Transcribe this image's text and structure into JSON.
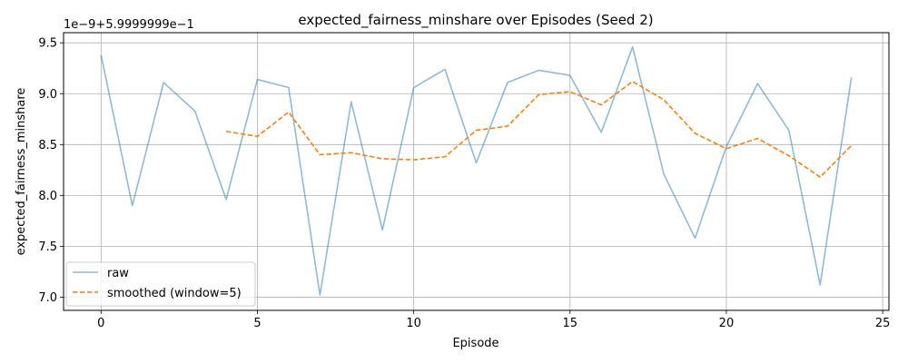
{
  "chart_data": {
    "type": "line",
    "title": "expected_fairness_minshare over Episodes (Seed 2)",
    "xlabel": "Episode",
    "ylabel": "expected_fairness_minshare",
    "offset_text": "1e−9+5.9999999e−1",
    "xlim": [
      -1.2,
      25.2
    ],
    "ylim": [
      6.87,
      9.6
    ],
    "xticks": [
      0,
      5,
      10,
      15,
      20,
      25
    ],
    "xtick_labels": [
      "0",
      "5",
      "10",
      "15",
      "20",
      "25"
    ],
    "yticks": [
      7.0,
      7.5,
      8.0,
      8.5,
      9.0,
      9.5
    ],
    "ytick_labels": [
      "7.0",
      "7.5",
      "8.0",
      "8.5",
      "9.0",
      "9.5"
    ],
    "grid": true,
    "legend_position": "lower-left",
    "series": [
      {
        "name": "raw",
        "color": "#1f77b4",
        "opacity": 0.5,
        "dash": "solid",
        "x": [
          0,
          1,
          2,
          3,
          4,
          5,
          6,
          7,
          8,
          9,
          10,
          11,
          12,
          13,
          14,
          15,
          16,
          17,
          18,
          19,
          20,
          21,
          22,
          23,
          24
        ],
        "values": [
          9.38,
          7.9,
          9.11,
          8.83,
          7.96,
          9.14,
          9.06,
          7.02,
          8.92,
          7.66,
          9.06,
          9.24,
          8.32,
          9.11,
          9.23,
          9.18,
          8.62,
          9.46,
          8.21,
          7.58,
          8.48,
          9.1,
          8.64,
          7.12,
          9.16
        ]
      },
      {
        "name": "smoothed (window=5)",
        "color": "#ff7f0e",
        "opacity": 1,
        "dash": "dashed",
        "x": [
          4,
          5,
          6,
          7,
          8,
          9,
          10,
          11,
          12,
          13,
          14,
          15,
          16,
          17,
          18,
          19,
          20,
          21,
          22,
          23,
          24
        ],
        "values": [
          8.63,
          8.58,
          8.82,
          8.4,
          8.42,
          8.36,
          8.35,
          8.38,
          8.64,
          8.68,
          8.99,
          9.02,
          8.89,
          9.12,
          8.94,
          8.61,
          8.46,
          8.56,
          8.39,
          8.18,
          8.49
        ]
      }
    ]
  }
}
